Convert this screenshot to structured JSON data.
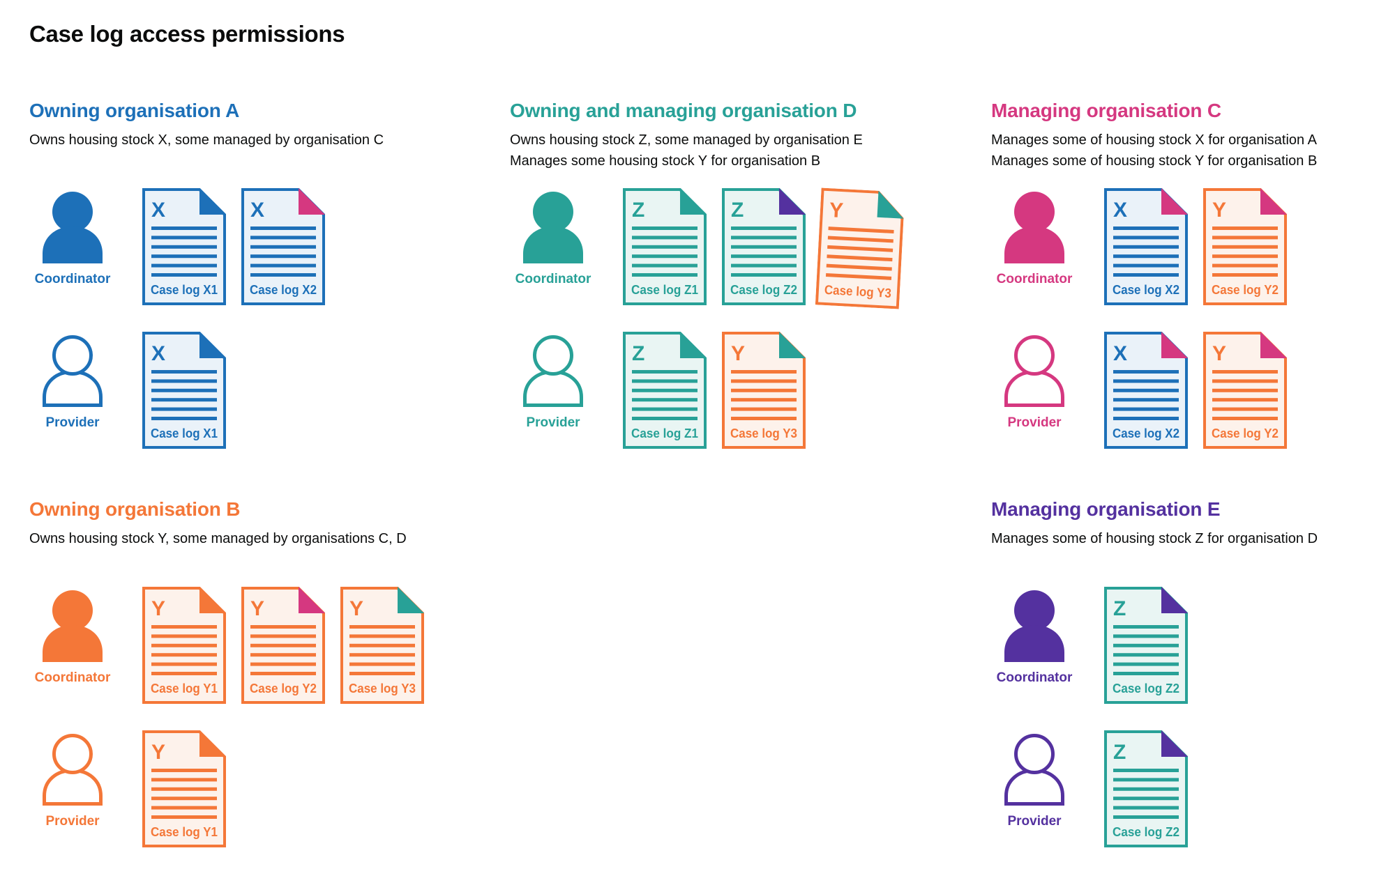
{
  "page": {
    "title": "Case log access permissions"
  },
  "colors": {
    "text": "#0b0c0c",
    "background": "#ffffff",
    "blue": "#1d70b8",
    "blue_fill": "#eaf2f9",
    "teal": "#28a197",
    "teal_fill": "#e9f5f3",
    "orange": "#f47738",
    "orange_fill": "#fdf2eb",
    "pink": "#d53880",
    "purple": "#54319f"
  },
  "sections": [
    {
      "id": "org-a",
      "title": "Owning organisation A",
      "color": "blue",
      "description": [
        "Owns housing stock X, some managed by organisation C"
      ],
      "rows": [
        {
          "person": "Coordinator",
          "person_type": "filled",
          "docs": [
            {
              "letter": "X",
              "label": "Case log X1",
              "stock": "blue",
              "fold": "blue"
            },
            {
              "letter": "X",
              "label": "Case log X2",
              "stock": "blue",
              "fold": "pink"
            }
          ]
        },
        {
          "person": "Provider",
          "person_type": "outline",
          "docs": [
            {
              "letter": "X",
              "label": "Case log X1",
              "stock": "blue",
              "fold": "blue"
            }
          ]
        }
      ]
    },
    {
      "id": "org-d",
      "title": "Owning and managing organisation D",
      "color": "teal",
      "description": [
        "Owns housing stock Z, some managed by organisation E",
        "Manages some housing stock Y for organisation B"
      ],
      "rows": [
        {
          "person": "Coordinator",
          "person_type": "filled",
          "docs": [
            {
              "letter": "Z",
              "label": "Case log Z1",
              "stock": "teal",
              "fold": "teal"
            },
            {
              "letter": "Z",
              "label": "Case log Z2",
              "stock": "teal",
              "fold": "purple"
            },
            {
              "letter": "Y",
              "label": "Case log Y3",
              "stock": "orange",
              "fold": "teal",
              "tilt": true
            }
          ]
        },
        {
          "person": "Provider",
          "person_type": "outline",
          "docs": [
            {
              "letter": "Z",
              "label": "Case log Z1",
              "stock": "teal",
              "fold": "teal"
            },
            {
              "letter": "Y",
              "label": "Case log Y3",
              "stock": "orange",
              "fold": "teal"
            }
          ]
        }
      ]
    },
    {
      "id": "org-c",
      "title": "Managing organisation C",
      "color": "pink",
      "description": [
        "Manages some of housing stock X for organisation A",
        "Manages some of housing stock Y for organisation B"
      ],
      "rows": [
        {
          "person": "Coordinator",
          "person_type": "filled",
          "docs": [
            {
              "letter": "X",
              "label": "Case log X2",
              "stock": "blue",
              "fold": "pink"
            },
            {
              "letter": "Y",
              "label": "Case log Y2",
              "stock": "orange",
              "fold": "pink"
            }
          ]
        },
        {
          "person": "Provider",
          "person_type": "outline",
          "docs": [
            {
              "letter": "X",
              "label": "Case log X2",
              "stock": "blue",
              "fold": "pink"
            },
            {
              "letter": "Y",
              "label": "Case log Y2",
              "stock": "orange",
              "fold": "pink"
            }
          ]
        }
      ]
    },
    {
      "id": "org-b",
      "title": "Owning organisation B",
      "color": "orange",
      "description": [
        "Owns housing stock Y, some managed by organisations C, D"
      ],
      "rows": [
        {
          "person": "Coordinator",
          "person_type": "filled",
          "docs": [
            {
              "letter": "Y",
              "label": "Case log Y1",
              "stock": "orange",
              "fold": "orange"
            },
            {
              "letter": "Y",
              "label": "Case log Y2",
              "stock": "orange",
              "fold": "pink"
            },
            {
              "letter": "Y",
              "label": "Case log Y3",
              "stock": "orange",
              "fold": "teal"
            }
          ]
        },
        {
          "person": "Provider",
          "person_type": "outline",
          "docs": [
            {
              "letter": "Y",
              "label": "Case log Y1",
              "stock": "orange",
              "fold": "orange"
            }
          ]
        }
      ]
    },
    {
      "id": "org-e",
      "title": "Managing organisation E",
      "color": "purple",
      "description": [
        "Manages some of housing stock Z for organisation D"
      ],
      "rows": [
        {
          "person": "Coordinator",
          "person_type": "filled",
          "docs": [
            {
              "letter": "Z",
              "label": "Case log Z2",
              "stock": "teal",
              "fold": "purple"
            }
          ]
        },
        {
          "person": "Provider",
          "person_type": "outline",
          "docs": [
            {
              "letter": "Z",
              "label": "Case log Z2",
              "stock": "teal",
              "fold": "purple"
            }
          ]
        }
      ]
    }
  ]
}
